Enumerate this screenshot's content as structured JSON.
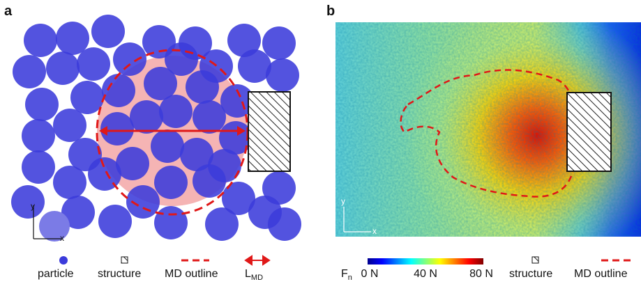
{
  "panel_a": {
    "label": "a",
    "axis_y": "y",
    "axis_x": "x"
  },
  "panel_b": {
    "label": "b",
    "axis_y": "y",
    "axis_x": "x"
  },
  "legend_a": {
    "particle": "particle",
    "structure": "structure",
    "md_outline": "MD outline",
    "l_md": "L",
    "l_md_sub": "MD"
  },
  "legend_b": {
    "symbol": "F",
    "symbol_sub": "n",
    "ticks": [
      "0 N",
      "40 N",
      "80 N"
    ],
    "structure": "structure",
    "md_outline": "MD outline"
  }
}
